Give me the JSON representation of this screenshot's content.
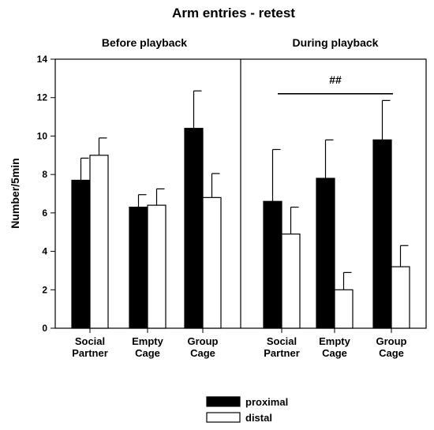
{
  "chart_data": {
    "type": "bar",
    "title": "Arm entries - retest",
    "ylabel": "Number/5min",
    "xlabel": "",
    "ylim": [
      0,
      14
    ],
    "yticks": [
      0,
      2,
      4,
      6,
      8,
      10,
      12,
      14
    ],
    "grid": false,
    "legend_position": "bottom-center",
    "panels": [
      {
        "title": "Before playback",
        "categories": [
          [
            "Social",
            "Partner"
          ],
          [
            "Empty",
            "Cage"
          ],
          [
            "Group",
            "Cage"
          ]
        ],
        "series": [
          {
            "name": "proximal",
            "color": "#000000",
            "values": [
              7.7,
              6.3,
              10.4
            ],
            "errors": [
              1.15,
              0.65,
              1.95
            ]
          },
          {
            "name": "distal",
            "color": "#ffffff",
            "values": [
              9.0,
              6.4,
              6.8
            ],
            "errors": [
              0.9,
              0.85,
              1.25
            ]
          }
        ]
      },
      {
        "title": "During playback",
        "categories": [
          [
            "Social",
            "Partner"
          ],
          [
            "Empty",
            "Cage"
          ],
          [
            "Group",
            "Cage"
          ]
        ],
        "series": [
          {
            "name": "proximal",
            "color": "#000000",
            "values": [
              6.6,
              7.8,
              9.8
            ],
            "errors": [
              2.7,
              2.0,
              2.05
            ]
          },
          {
            "name": "distal",
            "color": "#ffffff",
            "values": [
              4.9,
              2.0,
              3.2
            ],
            "errors": [
              1.4,
              0.9,
              1.1
            ]
          }
        ],
        "annotation": {
          "text": "##",
          "y": 12.2,
          "from_category": 0,
          "to_category": 2
        }
      }
    ]
  }
}
